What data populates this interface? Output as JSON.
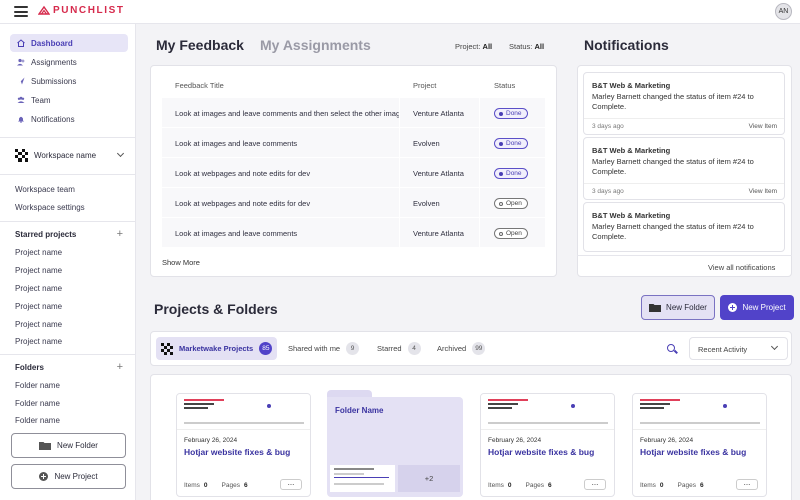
{
  "app": {
    "name": "PUNCHLIST",
    "avatar_initials": "AN",
    "brand_color": "#d62a4c",
    "accent_color": "#5143c9"
  },
  "sidebar": {
    "nav": [
      {
        "label": "Dashboard",
        "icon": "home-icon",
        "active": true
      },
      {
        "label": "Assignments",
        "icon": "user-plus-icon"
      },
      {
        "label": "Submissions",
        "icon": "send-icon"
      },
      {
        "label": "Team",
        "icon": "team-icon"
      },
      {
        "label": "Notifications",
        "icon": "bell-icon"
      }
    ],
    "workspace_name": "Workspace name",
    "workspace_team": "Workspace team",
    "workspace_settings": "Workspace settings",
    "starred_heading": "Starred projects",
    "starred": [
      "Project name",
      "Project name",
      "Project name",
      "Project name",
      "Project name",
      "Project name"
    ],
    "folders_heading": "Folders",
    "folders": [
      "Folder name",
      "Folder name",
      "Folder name"
    ],
    "new_folder": "New Folder",
    "new_project": "New Project"
  },
  "feedback": {
    "tab_active": "My Feedback",
    "tab_inactive": "My Assignments",
    "filter_project_label": "Project:",
    "filter_project_value": "All",
    "filter_status_label": "Status:",
    "filter_status_value": "All",
    "columns": [
      "Feedback Title",
      "Project",
      "Status"
    ],
    "rows": [
      {
        "title": "Look at images and leave comments and then select the other images",
        "project": "Venture Atlanta",
        "status": "Done"
      },
      {
        "title": "Look at images and leave comments",
        "project": "Evolven",
        "status": "Done"
      },
      {
        "title": "Look at webpages and note edits for dev",
        "project": "Venture Atlanta",
        "status": "Done"
      },
      {
        "title": "Look at webpages and note edits for dev",
        "project": "Evolven",
        "status": "Open"
      },
      {
        "title": "Look at images and leave comments",
        "project": "Venture Atlanta",
        "status": "Open"
      }
    ],
    "show_more": "Show More"
  },
  "notifications": {
    "title": "Notifications",
    "items": [
      {
        "title": "B&T Web & Marketing",
        "body": "Marley Barnett changed the status of item #24 to Complete.",
        "time": "3 days ago",
        "action": "View Item"
      },
      {
        "title": "B&T Web & Marketing",
        "body": "Marley Barnett changed the status of item #24 to Complete.",
        "time": "3 days ago",
        "action": "View Item"
      },
      {
        "title": "B&T Web & Marketing",
        "body": "Marley Barnett changed the status of item #24 to Complete.",
        "time": "",
        "action": ""
      }
    ],
    "view_all": "View all notifications"
  },
  "projects": {
    "title": "Projects & Folders",
    "new_folder": "New Folder",
    "new_project": "New Project",
    "tabs": [
      {
        "label": "Marketwake Projects",
        "count": "85",
        "active": true
      },
      {
        "label": "Shared with me",
        "count": "9"
      },
      {
        "label": "Starred",
        "count": "4"
      },
      {
        "label": "Archived",
        "count": "99"
      }
    ],
    "sort_value": "Recent Activity",
    "cards": [
      {
        "date": "February 26, 2024",
        "name": "Hotjar website fixes & bug",
        "items_label": "Items",
        "items": "0",
        "pages_label": "Pages",
        "pages": "6"
      },
      {
        "date": "February 26, 2024",
        "name": "Hotjar website fixes & bug",
        "items_label": "Items",
        "items": "0",
        "pages_label": "Pages",
        "pages": "6"
      },
      {
        "date": "February 26, 2024",
        "name": "Hotjar website fixes & bug",
        "items_label": "Items",
        "items": "0",
        "pages_label": "Pages",
        "pages": "6"
      }
    ],
    "folder": {
      "name": "Folder Name",
      "extra": "+2"
    }
  }
}
